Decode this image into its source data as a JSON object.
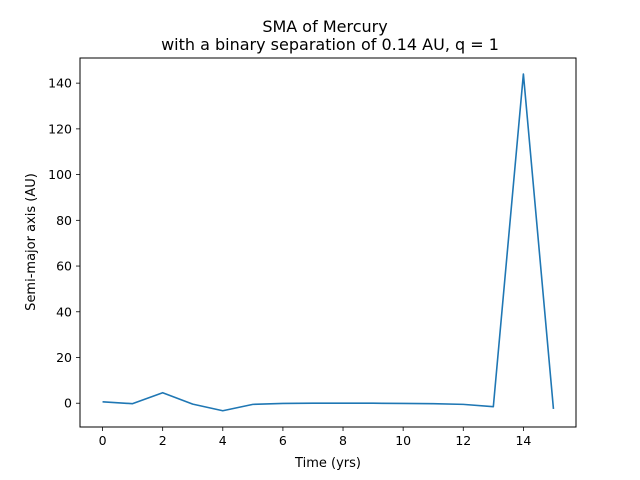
{
  "chart_data": {
    "type": "line",
    "title_line1": "SMA of Mercury",
    "title_line2": "with a binary separation of 0.14 AU, q = 1",
    "xlabel": "Time (yrs)",
    "ylabel": "Semi-major axis (AU)",
    "xlim": [
      -0.75,
      15.75
    ],
    "ylim": [
      -10.4,
      151.0
    ],
    "xticks": [
      0,
      2,
      4,
      6,
      8,
      10,
      12,
      14
    ],
    "yticks": [
      0,
      20,
      40,
      60,
      80,
      100,
      120,
      140
    ],
    "grid": false,
    "series": [
      {
        "color": "#1f77b4",
        "x": [
          0,
          1,
          2,
          3,
          4,
          5,
          6,
          7,
          8,
          9,
          10,
          11,
          12,
          13,
          14,
          15
        ],
        "y": [
          0.6,
          -0.2,
          4.6,
          -0.4,
          -3.3,
          -0.5,
          -0.1,
          -0.0,
          -0.0,
          -0.0,
          -0.1,
          -0.2,
          -0.5,
          -1.5,
          144.0,
          -2.5
        ]
      }
    ]
  }
}
